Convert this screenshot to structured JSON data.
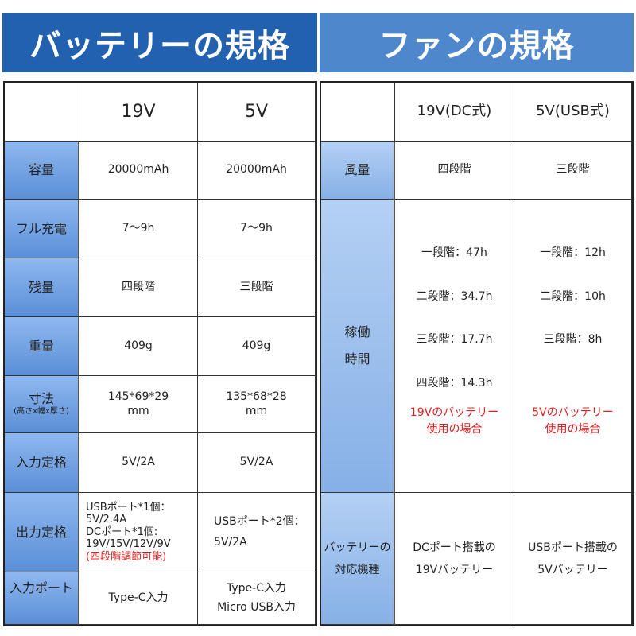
{
  "battery": {
    "title": "バッテリーの規格",
    "headers": [
      "",
      "19V",
      "5V"
    ],
    "rows": [
      {
        "label": "容量",
        "v19": "20000mAh",
        "v5": "20000mAh"
      },
      {
        "label": "フル充電",
        "v19": "7〜9h",
        "v5": "7〜9h"
      },
      {
        "label": "残量",
        "v19": "四段階",
        "v5": "三段階"
      },
      {
        "label": "重量",
        "v19": "409g",
        "v5": "409g"
      },
      {
        "label": "寸法",
        "sublabel": "(高さx幅x厚さ)",
        "v19": [
          "145*69*29",
          "mm"
        ],
        "v5": [
          "135*68*28",
          "mm"
        ]
      },
      {
        "label": "入力定格",
        "v19": "5V/2A",
        "v5": "5V/2A"
      },
      {
        "label": "出力定格",
        "v19": [
          "USBポート*1個：",
          "5V/2.4A",
          "DCポート*1個:",
          "19V/15V/12V/9V"
        ],
        "v19_note": "(四段階調節可能)",
        "v5": [
          "USBポート*2個：",
          "5V/2A"
        ]
      },
      {
        "label": "入力ポート",
        "v19": "Type-C入力",
        "v5": [
          "Type-C入力",
          "Micro USB入力"
        ]
      }
    ]
  },
  "fan": {
    "title": "ファンの規格",
    "headers": [
      "",
      "19V(DC式)",
      "5V(USB式)"
    ],
    "airflow": {
      "label": "風量",
      "v19": "四段階",
      "v5": "三段階"
    },
    "runtime": {
      "label": [
        "稼働",
        "時間"
      ],
      "v19": [
        "一段階：47h",
        "二段階：34.7h",
        "三段階：17.7h",
        "四段階：14.3h"
      ],
      "v19_note": [
        "19Vのバッテリー",
        "使用の場合"
      ],
      "v5": [
        "一段階：12h",
        "二段階：10h",
        "三段階：8h"
      ],
      "v5_note": [
        "5Vのバッテリー",
        "使用の場合"
      ]
    },
    "compat": {
      "label": [
        "バッテリーの",
        "対応機種"
      ],
      "v19": [
        "DCポート搭載の",
        "19Vバッテリー"
      ],
      "v5": [
        "USBポート搭載の",
        "5Vバッテリー"
      ]
    }
  },
  "colors": {
    "banner_left": "#2260b0",
    "banner_right": "#4f87cc",
    "note": "#e02020"
  }
}
